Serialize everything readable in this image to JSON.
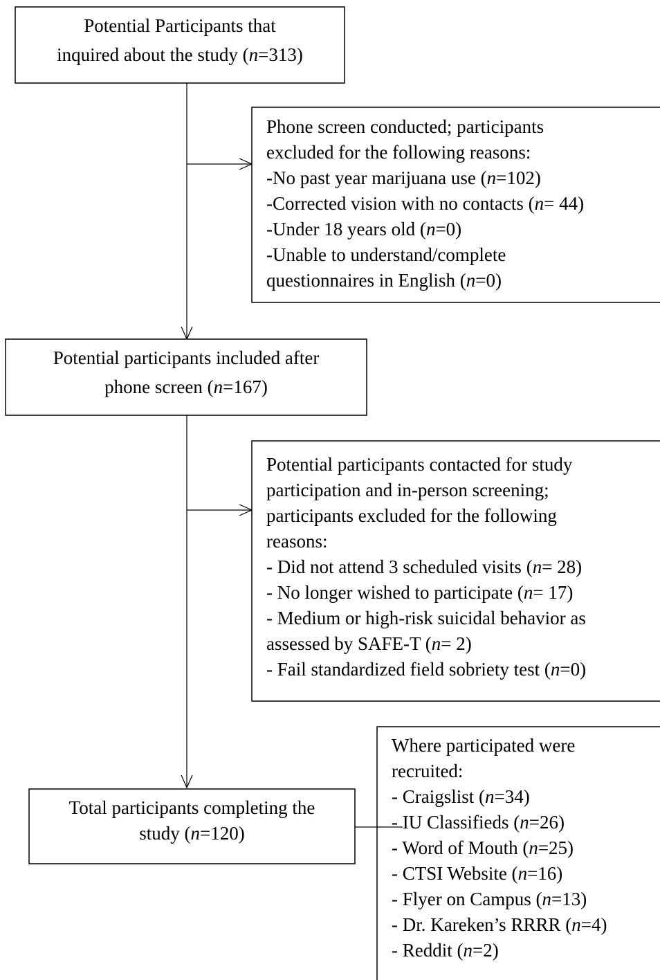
{
  "nodes": [
    {
      "lines": [
        [
          "Potential Participants that"
        ],
        [
          "inquired about the study (",
          "n",
          "=313)"
        ]
      ]
    },
    {
      "lines": [
        [
          "Phone screen conducted; participants"
        ],
        [
          "excluded for the following reasons:"
        ],
        [
          "-No past year marijuana use (",
          "n",
          "=102)"
        ],
        [
          "-Corrected vision with no contacts (",
          "n",
          "= 44)"
        ],
        [
          "-Under 18 years old (",
          "n",
          "=0)"
        ],
        [
          "-Unable to understand/complete"
        ],
        [
          "questionnaires in English (",
          "n",
          "=0)"
        ]
      ]
    },
    {
      "lines": [
        [
          "Potential participants included after"
        ],
        [
          "phone screen (",
          "n",
          "=167)"
        ]
      ]
    },
    {
      "lines": [
        [
          "Potential participants contacted for study"
        ],
        [
          "participation and in-person screening;"
        ],
        [
          "participants excluded for the following"
        ],
        [
          "reasons:"
        ],
        [
          "- Did not attend 3 scheduled visits (",
          "n",
          "= 28)"
        ],
        [
          "- No longer wished to participate (",
          "n",
          "= 17)"
        ],
        [
          "- Medium or high-risk suicidal behavior as"
        ],
        [
          "assessed by SAFE-T (",
          "n",
          "= 2)"
        ],
        [
          "- Fail standardized field sobriety test (",
          "n",
          "=0)"
        ]
      ]
    },
    {
      "lines": [
        [
          "Where participated were"
        ],
        [
          "recruited:"
        ],
        [
          "- Craigslist (",
          "n",
          "=34)"
        ],
        [
          "- IU Classifieds (",
          "n",
          "=26)"
        ],
        [
          "- Word of Mouth (",
          "n",
          "=25)"
        ],
        [
          "- CTSI Website (",
          "n",
          "=16)"
        ],
        [
          "- Flyer on Campus (",
          "n",
          "=13)"
        ],
        [
          "- Dr. Kareken’s RRRR (",
          "n",
          "=4)"
        ],
        [
          "- Reddit (",
          "n",
          "=2)"
        ]
      ]
    },
    {
      "lines": [
        [
          "Total participants completing the"
        ],
        [
          "study (",
          "n",
          "=120)"
        ]
      ]
    }
  ]
}
